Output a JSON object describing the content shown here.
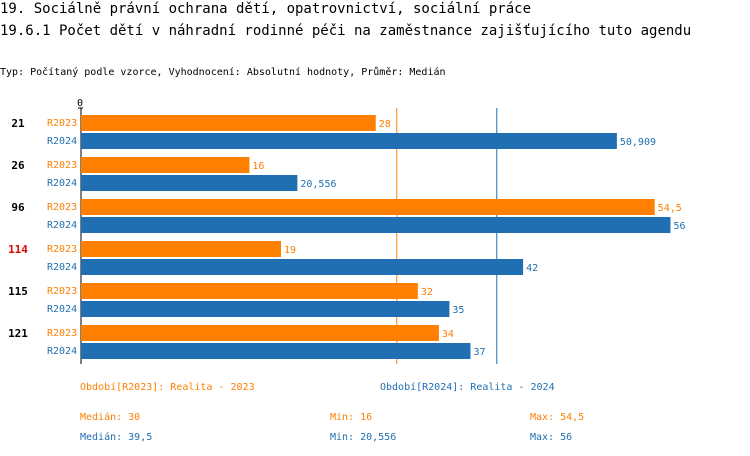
{
  "header": {
    "title_line1": "19. Sociálně právní ochrana dětí, opatrovnictví, sociální práce",
    "title_line2": "19.6.1 Počet dětí v náhradní rodinné péči na zaměstnance zajišťujícího tuto agendu",
    "subtitle": "Typ: Počítaný podle vzorce, Vyhodnocení: Absolutní hodnoty, Průměr: Medián"
  },
  "colors": {
    "r2023": "#ff7f00",
    "r2024": "#1f6fb2",
    "highlight": "#dd0000",
    "axis": "#000000"
  },
  "chart_data": {
    "type": "bar",
    "orientation": "horizontal",
    "x_axis_tick": "0",
    "xlim": [
      0,
      57
    ],
    "categories": [
      "21",
      "26",
      "96",
      "114",
      "115",
      "121"
    ],
    "highlighted_category": "114",
    "series": [
      {
        "name": "R2023",
        "values": [
          28,
          16,
          54.5,
          19,
          32,
          34
        ],
        "labels": [
          "28",
          "16",
          "54,5",
          "19",
          "32",
          "34"
        ]
      },
      {
        "name": "R2024",
        "values": [
          50.909,
          20.556,
          56,
          42,
          35,
          37
        ],
        "labels": [
          "50,909",
          "20,556",
          "56",
          "42",
          "35",
          "37"
        ]
      }
    ],
    "reference_lines": [
      {
        "series": "R2023",
        "value": 30
      },
      {
        "series": "R2024",
        "value": 39.5
      }
    ]
  },
  "legend": {
    "r2023": "Období[R2023]: Realita - 2023",
    "r2024": "Období[R2024]: Realita - 2024"
  },
  "stats": {
    "r2023": {
      "median": "Medián: 30",
      "min": "Min: 16",
      "max": "Max: 54,5"
    },
    "r2024": {
      "median": "Medián: 39,5",
      "min": "Min: 20,556",
      "max": "Max: 56"
    }
  }
}
